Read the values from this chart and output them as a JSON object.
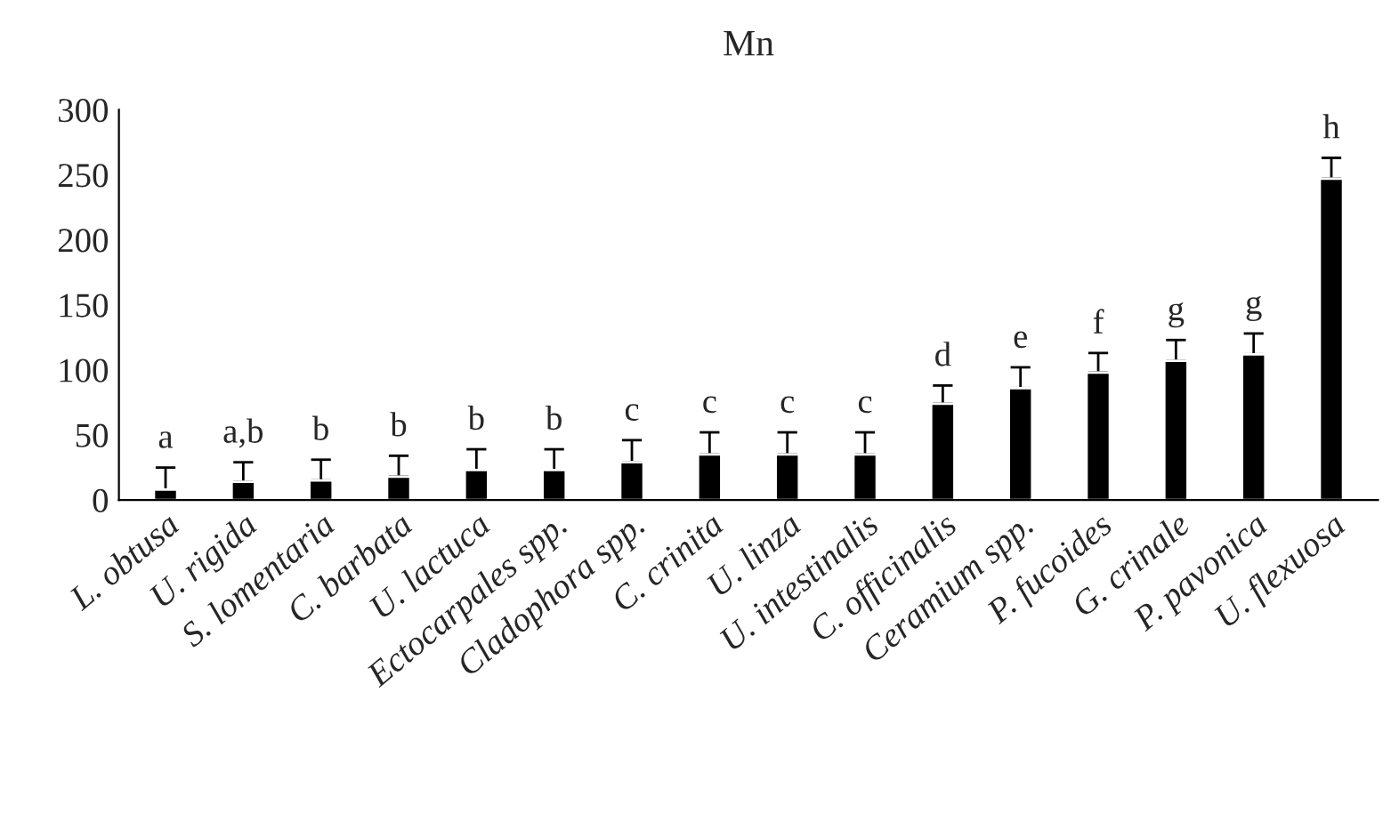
{
  "chart_data": {
    "type": "bar",
    "title": "Mn",
    "categories": [
      "L. obtusa",
      "U. rigida",
      "S. lomentaria",
      "C. barbata",
      "U. lactuca",
      "Ectocarpales spp.",
      "Cladophora spp.",
      "C. crinita",
      "U. linza",
      "U. intestinalis",
      "C. officinalis",
      "Ceramium spp.",
      "P. fucoides",
      "G. crinale",
      "P. pavonica",
      "U. flexuosa"
    ],
    "series": [
      {
        "color": "#000000",
        "values": [
          8,
          14,
          15,
          18,
          23,
          23,
          29,
          35,
          35,
          35,
          74,
          86,
          98,
          107,
          112,
          247
        ],
        "errors": [
          [
            8,
            25
          ],
          [
            14,
            29
          ],
          [
            15,
            31
          ],
          [
            18,
            34
          ],
          [
            23,
            39
          ],
          [
            23,
            39
          ],
          [
            29,
            46
          ],
          [
            35,
            52
          ],
          [
            35,
            52
          ],
          [
            35,
            52
          ],
          [
            74,
            88
          ],
          [
            86,
            102
          ],
          [
            98,
            113
          ],
          [
            107,
            123
          ],
          [
            112,
            128
          ],
          [
            247,
            263
          ]
        ]
      }
    ],
    "annotations": [
      {
        "text": "a",
        "x": "L. obtusa",
        "y": 25
      },
      {
        "text": "a,b",
        "x": "U. rigida",
        "y": 29
      },
      {
        "text": "b",
        "x": "S. lomentaria",
        "y": 31
      },
      {
        "text": "b",
        "x": "C. barbata",
        "y": 34
      },
      {
        "text": "b",
        "x": "U. lactuca",
        "y": 39
      },
      {
        "text": "b",
        "x": "Ectocarpales spp.",
        "y": 39
      },
      {
        "text": "c",
        "x": "Cladophora spp.",
        "y": 46
      },
      {
        "text": "c",
        "x": "C. crinita",
        "y": 52
      },
      {
        "text": "c",
        "x": "U. linza",
        "y": 52
      },
      {
        "text": "c",
        "x": "U. intestinalis",
        "y": 52
      },
      {
        "text": "d",
        "x": "C. officinalis",
        "y": 88
      },
      {
        "text": "e",
        "x": "Ceramium spp.",
        "y": 102
      },
      {
        "text": "f",
        "x": "P. fucoides",
        "y": 113
      },
      {
        "text": "g",
        "x": "G. crinale",
        "y": 123
      },
      {
        "text": "g",
        "x": "P. pavonica",
        "y": 128
      },
      {
        "text": "h",
        "x": "U. flexuosa",
        "y": 263
      }
    ],
    "ylim": [
      0,
      300
    ],
    "yticks": [
      0,
      50,
      100,
      150,
      200,
      250,
      300
    ],
    "grid": false,
    "legend": false
  }
}
